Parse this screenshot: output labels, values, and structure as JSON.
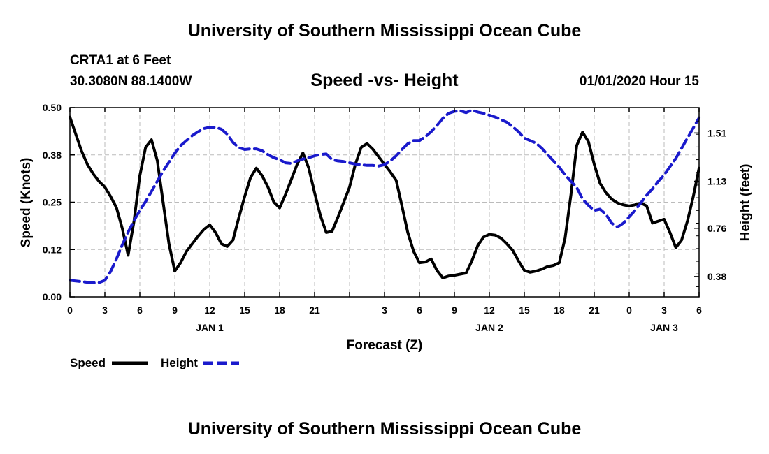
{
  "page": {
    "top_title": "University of Southern Mississippi Ocean Cube",
    "bottom_title": "University of Southern Mississippi Ocean Cube",
    "station": "CRTA1 at 6 Feet",
    "coords": "30.3080N 88.1400W",
    "datetime": "01/01/2020 Hour 15"
  },
  "colors": {
    "speed": "#000000",
    "height": "#1a1acc",
    "grid": "#bbbbbb"
  },
  "chart_data": {
    "type": "line",
    "title": "Speed -vs- Height",
    "xlabel": "Forecast (Z)",
    "ylabel": "Speed (Knots)",
    "y2label": "Height (feet)",
    "xlim": [
      0,
      54
    ],
    "ylim": [
      0,
      0.5
    ],
    "y2lim": [
      0.22,
      1.71
    ],
    "x_ticks": [
      0,
      3,
      6,
      9,
      12,
      15,
      18,
      21,
      24,
      27,
      30,
      33,
      36,
      39,
      42,
      45,
      48,
      51,
      54
    ],
    "x_tick_labels": [
      "0",
      "3",
      "6",
      "9",
      "12",
      "15",
      "18",
      "21",
      "",
      "3",
      "6",
      "9",
      "12",
      "15",
      "18",
      "21",
      "0",
      "3",
      "6"
    ],
    "date_labels": [
      {
        "x": 12,
        "label": "JAN 1"
      },
      {
        "x": 36,
        "label": "JAN 2"
      },
      {
        "x": 51,
        "label": "JAN 3"
      }
    ],
    "y_ticks": [
      0,
      0.125,
      0.25,
      0.375,
      0.5
    ],
    "y_tick_labels": [
      "0.00",
      "0.12",
      "0.25",
      "0.38",
      "0.50"
    ],
    "y2_ticks": [
      0.38,
      0.76,
      1.13,
      1.51
    ],
    "y2_tick_labels": [
      "0.38",
      "0.76",
      "1.13",
      "1.51"
    ],
    "legend": [
      {
        "name": "Speed",
        "style": "solid"
      },
      {
        "name": "Height",
        "style": "dashed"
      }
    ],
    "series": [
      {
        "name": "Speed",
        "axis": "left",
        "x": [
          0,
          0.5,
          1,
          1.5,
          2,
          2.5,
          3,
          3.5,
          4,
          4.5,
          5,
          5.5,
          6,
          6.5,
          7,
          7.5,
          8,
          8.5,
          9,
          9.5,
          10,
          10.5,
          11,
          11.5,
          12,
          12.5,
          13,
          13.5,
          14,
          14.5,
          15,
          15.5,
          16,
          16.5,
          17,
          17.5,
          18,
          18.5,
          19,
          19.5,
          20,
          20.5,
          21,
          21.5,
          22,
          22.5,
          23,
          23.5,
          24,
          24.5,
          25,
          25.5,
          26,
          26.5,
          27,
          27.5,
          28,
          28.5,
          29,
          29.5,
          30,
          30.5,
          31,
          31.5,
          32,
          32.5,
          33,
          33.5,
          34,
          34.5,
          35,
          35.5,
          36,
          36.5,
          37,
          37.5,
          38,
          38.5,
          39,
          39.5,
          40,
          40.5,
          41,
          41.5,
          42,
          42.5,
          43,
          43.5,
          44,
          44.5,
          45,
          45.5,
          46,
          46.5,
          47,
          47.5,
          48,
          48.5,
          49,
          49.5,
          50,
          50.5,
          51,
          51.5,
          52,
          52.5,
          53,
          53.5,
          54
        ],
        "values": [
          0.475,
          0.43,
          0.385,
          0.35,
          0.325,
          0.305,
          0.29,
          0.265,
          0.235,
          0.18,
          0.11,
          0.2,
          0.32,
          0.395,
          0.415,
          0.36,
          0.25,
          0.14,
          0.068,
          0.09,
          0.12,
          0.14,
          0.16,
          0.178,
          0.19,
          0.17,
          0.14,
          0.133,
          0.15,
          0.21,
          0.265,
          0.315,
          0.34,
          0.32,
          0.29,
          0.25,
          0.235,
          0.27,
          0.31,
          0.35,
          0.38,
          0.34,
          0.275,
          0.215,
          0.17,
          0.173,
          0.21,
          0.25,
          0.29,
          0.35,
          0.395,
          0.405,
          0.39,
          0.37,
          0.35,
          0.33,
          0.308,
          0.24,
          0.17,
          0.12,
          0.09,
          0.092,
          0.1,
          0.07,
          0.05,
          0.055,
          0.057,
          0.06,
          0.063,
          0.095,
          0.135,
          0.158,
          0.165,
          0.163,
          0.155,
          0.14,
          0.123,
          0.095,
          0.07,
          0.065,
          0.068,
          0.073,
          0.08,
          0.083,
          0.09,
          0.155,
          0.27,
          0.4,
          0.435,
          0.41,
          0.35,
          0.3,
          0.275,
          0.258,
          0.248,
          0.243,
          0.24,
          0.243,
          0.248,
          0.24,
          0.195,
          0.2,
          0.205,
          0.17,
          0.13,
          0.15,
          0.2,
          0.265,
          0.34
        ]
      },
      {
        "name": "Height",
        "axis": "right",
        "x": [
          0,
          0.5,
          1,
          1.5,
          2,
          2.5,
          3,
          3.5,
          4,
          4.5,
          5,
          5.5,
          6,
          6.5,
          7,
          7.5,
          8,
          8.5,
          9,
          9.5,
          10,
          10.5,
          11,
          11.5,
          12,
          12.5,
          13,
          13.5,
          14,
          14.5,
          15,
          15.5,
          16,
          16.5,
          17,
          17.5,
          18,
          18.5,
          19,
          19.5,
          20,
          20.5,
          21,
          21.5,
          22,
          22.5,
          23,
          23.5,
          24,
          24.5,
          25,
          25.5,
          26,
          26.5,
          27,
          27.5,
          28,
          28.5,
          29,
          29.5,
          30,
          30.5,
          31,
          31.5,
          32,
          32.5,
          33,
          33.5,
          34,
          34.5,
          35,
          35.5,
          36,
          36.5,
          37,
          37.5,
          38,
          38.5,
          39,
          39.5,
          40,
          40.5,
          41,
          41.5,
          42,
          42.5,
          43,
          43.5,
          44,
          44.5,
          45,
          45.5,
          46,
          46.5,
          47,
          47.5,
          48,
          48.5,
          49,
          49.5,
          50,
          50.5,
          51,
          51.5,
          52,
          52.5,
          53,
          53.5,
          54
        ],
        "values": [
          0.35,
          0.345,
          0.34,
          0.335,
          0.33,
          0.332,
          0.35,
          0.42,
          0.52,
          0.63,
          0.73,
          0.82,
          0.9,
          0.97,
          1.05,
          1.13,
          1.21,
          1.28,
          1.35,
          1.41,
          1.45,
          1.49,
          1.52,
          1.545,
          1.555,
          1.555,
          1.54,
          1.5,
          1.435,
          1.395,
          1.38,
          1.385,
          1.385,
          1.37,
          1.34,
          1.315,
          1.3,
          1.275,
          1.27,
          1.29,
          1.305,
          1.315,
          1.33,
          1.34,
          1.345,
          1.3,
          1.29,
          1.285,
          1.275,
          1.265,
          1.26,
          1.255,
          1.255,
          1.25,
          1.26,
          1.29,
          1.33,
          1.38,
          1.425,
          1.45,
          1.45,
          1.48,
          1.52,
          1.57,
          1.625,
          1.665,
          1.68,
          1.685,
          1.67,
          1.69,
          1.675,
          1.665,
          1.65,
          1.635,
          1.615,
          1.595,
          1.56,
          1.52,
          1.47,
          1.45,
          1.43,
          1.39,
          1.34,
          1.29,
          1.24,
          1.18,
          1.13,
          1.08,
          0.99,
          0.94,
          0.9,
          0.91,
          0.87,
          0.8,
          0.77,
          0.8,
          0.85,
          0.9,
          0.96,
          1.02,
          1.07,
          1.13,
          1.18,
          1.245,
          1.31,
          1.39,
          1.47,
          1.55,
          1.63
        ]
      }
    ]
  }
}
